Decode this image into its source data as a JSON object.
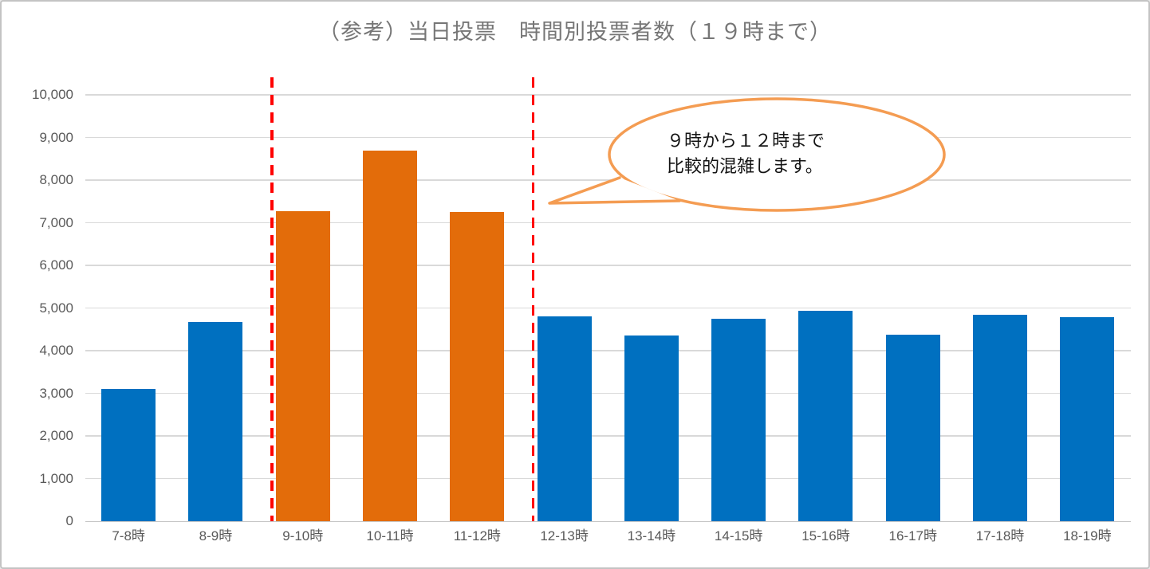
{
  "chart_data": {
    "type": "bar",
    "title": "（参考）当日投票　時間別投票者数（１９時まで）",
    "categories": [
      "7-8時",
      "8-9時",
      "9-10時",
      "10-11時",
      "11-12時",
      "12-13時",
      "13-14時",
      "14-15時",
      "15-16時",
      "16-17時",
      "17-18時",
      "18-19時"
    ],
    "values": [
      3100,
      4670,
      7280,
      8700,
      7250,
      4800,
      4350,
      4750,
      4930,
      4380,
      4840,
      4790
    ],
    "highlighted_categories": [
      "9-10時",
      "10-11時",
      "11-12時"
    ],
    "xlabel": "",
    "ylabel": "",
    "ylim": [
      0,
      10000
    ],
    "ytick_step": 1000,
    "y_tick_labels": [
      "0",
      "1,000",
      "2,000",
      "3,000",
      "4,000",
      "5,000",
      "6,000",
      "7,000",
      "8,000",
      "9,000",
      "10,000"
    ],
    "grid": true,
    "legend": "none",
    "colors": {
      "bar": "#0070C0",
      "highlight_bar": "#E36C0A",
      "gridline": "#d9d9d9",
      "axis_text": "#595959",
      "title_text": "#767676"
    },
    "annotations": {
      "divider_lines": {
        "style": "dashed",
        "color": "#FF0000",
        "between_categories": [
          [
            "8-9時",
            "9-10時"
          ],
          [
            "11-12時",
            "12-13時"
          ]
        ]
      },
      "callout": {
        "lines": [
          "９時から１２時まで",
          "比較的混雑します。"
        ],
        "border_color": "#F49C52",
        "fill_color": "#ffffff",
        "text_color": "#141414"
      }
    }
  }
}
